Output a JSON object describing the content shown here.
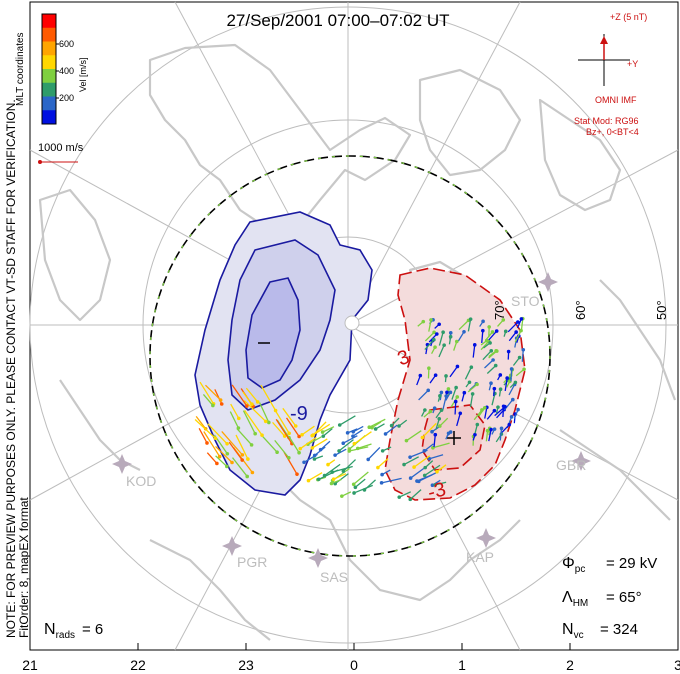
{
  "title": "27/Sep/2001  07:00–07:02  UT",
  "coords_label": "MLT coordinates",
  "colorbar": {
    "title": "Vel [m/s]",
    "ticks": [
      "600",
      "400",
      "200"
    ],
    "colors": [
      "#ff0000",
      "#ff5a00",
      "#ffa500",
      "#ffd700",
      "#7fd040",
      "#2e9c6a",
      "#2a66c8",
      "#0010e0"
    ]
  },
  "scale_vector_label": "1000 m/s",
  "imf": {
    "z_label": "+Z (5 nT)",
    "y_label": "+Y",
    "source": "OMNI IMF",
    "stat_mod": "Stat Mod: RG96",
    "condition": "Bz+, 0<BT<4"
  },
  "left_notes": {
    "preview": "NOTE: FOR PREVIEW PURPOSES ONLY. PLEASE CONTACT VT-SD STAFF FOR VERIFICATION.",
    "fit": "FitOrder: 8, mapEX format"
  },
  "latitude_labels": [
    "70°",
    "60°",
    "50°"
  ],
  "stations": [
    "STO",
    "GBR",
    "KAP",
    "SAS",
    "PGR",
    "KOD"
  ],
  "contour_labels": [
    "-9",
    "3",
    "-3"
  ],
  "stats": {
    "phi_pc": "= 29 kV",
    "lambda_hm": "= 65°",
    "n_vc": "= 324",
    "n_rads": "= 6"
  },
  "mlt_axis": [
    "21",
    "22",
    "23",
    "0",
    "1",
    "2",
    "3"
  ],
  "styles": {
    "neg_color": "#1a1aa0",
    "pos_color": "#cc1010",
    "map_line": "#c8c8c8",
    "grid": "#bdbdbd"
  }
}
